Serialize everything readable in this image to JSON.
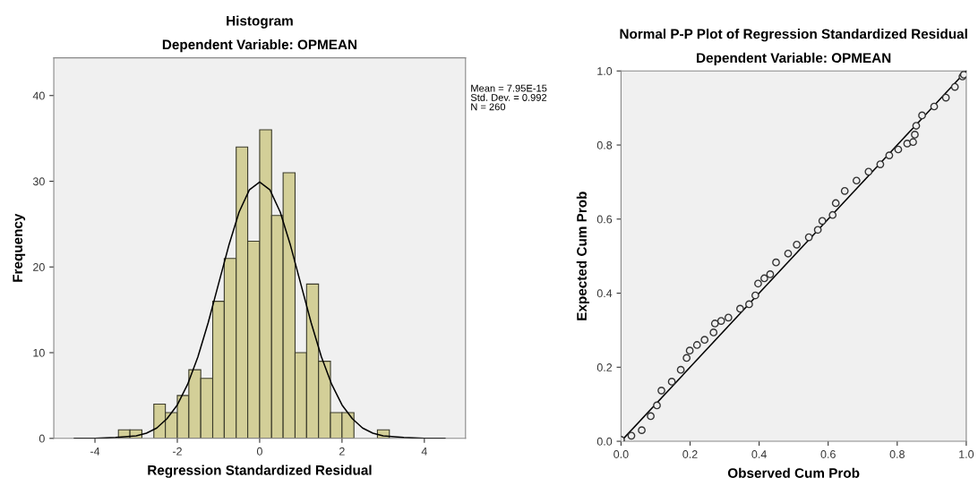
{
  "chart_data": [
    {
      "type": "histogram",
      "title": "Histogram",
      "subtitle": "Dependent Variable: OPMEAN",
      "xlabel": "Regression Standardized Residual",
      "ylabel": "Frequency",
      "xlim": [
        -5,
        5
      ],
      "ylim": [
        0,
        44.4
      ],
      "xticks": [
        -4,
        -2,
        0,
        2,
        4
      ],
      "yticks": [
        0,
        10,
        20,
        30,
        40
      ],
      "series": [
        {
          "color": "#d3cf98",
          "bins": [
            -3.43,
            -3.15,
            -2.86,
            -2.57,
            -2.29,
            -2.0,
            -1.72,
            -1.43,
            -1.14,
            -0.86,
            -0.57,
            -0.29,
            0,
            0.29,
            0.57,
            0.86,
            1.14,
            1.43,
            1.72,
            2.0,
            2.29,
            2.57,
            2.86,
            3.15
          ],
          "values": [
            1,
            1,
            0,
            4,
            3,
            5,
            8,
            7,
            16,
            21,
            34,
            23,
            36,
            26,
            31,
            10,
            18,
            9,
            3,
            3,
            0,
            0,
            1
          ]
        },
        {
          "type": "line",
          "color": "#000000",
          "x": [
            -4.5,
            -4,
            -3.5,
            -3,
            -2.75,
            -2.5,
            -2.25,
            -2,
            -1.75,
            -1.5,
            -1.25,
            -1,
            -0.75,
            -0.5,
            -0.25,
            0,
            0.25,
            0.5,
            0.75,
            1,
            1.25,
            1.5,
            1.75,
            2,
            2.25,
            2.5,
            2.75,
            3,
            3.5,
            4,
            4.5
          ],
          "values": [
            0,
            0,
            0.1,
            0.3,
            0.6,
            1.2,
            2.3,
            3.9,
            6.3,
            9.5,
            13.5,
            18.0,
            22.5,
            26.4,
            29.0,
            29.9,
            29.0,
            26.4,
            22.5,
            18.0,
            13.5,
            9.5,
            6.3,
            3.9,
            2.3,
            1.2,
            0.6,
            0.3,
            0.1,
            0,
            0
          ]
        }
      ],
      "annotations": [
        "Mean = 7.95E-15",
        "Std. Dev. = 0.992",
        "N = 260"
      ]
    },
    {
      "type": "scatter",
      "title": "Normal P-P Plot of Regression Standardized Residual",
      "subtitle": "Dependent Variable: OPMEAN",
      "xlabel": "Observed Cum Prob",
      "ylabel": "Expected Cum Prob",
      "xlim": [
        0,
        1
      ],
      "ylim": [
        0,
        1
      ],
      "xticks": [
        {
          "value": 0,
          "label": "0.0"
        },
        {
          "value": 0.2,
          "label": "0.2"
        },
        {
          "value": 0.4,
          "label": "0.4"
        },
        {
          "value": 0.6,
          "label": "0.6"
        },
        {
          "value": 0.8,
          "label": "0.8"
        },
        {
          "value": 1,
          "label": "1.0"
        }
      ],
      "yticks": [
        {
          "value": 0,
          "label": "0.0"
        },
        {
          "value": 0.2,
          "label": "0.2"
        },
        {
          "value": 0.4,
          "label": "0.4"
        },
        {
          "value": 0.6,
          "label": "0.6"
        },
        {
          "value": 0.8,
          "label": "0.8"
        },
        {
          "value": 1,
          "label": "1.0"
        }
      ],
      "series": [
        {
          "marker": "circle",
          "color": "#333333",
          "x": [
            0.0,
            0.03,
            0.06,
            0.086,
            0.104,
            0.117,
            0.147,
            0.173,
            0.19,
            0.199,
            0.22,
            0.242,
            0.268,
            0.272,
            0.29,
            0.311,
            0.345,
            0.371,
            0.389,
            0.397,
            0.415,
            0.432,
            0.449,
            0.484,
            0.509,
            0.544,
            0.57,
            0.583,
            0.613,
            0.622,
            0.648,
            0.682,
            0.717,
            0.751,
            0.777,
            0.803,
            0.829,
            0.846,
            0.851,
            0.855,
            0.872,
            0.907,
            0.941,
            0.967,
            0.989,
            0.993
          ],
          "values": [
            0.004,
            0.015,
            0.03,
            0.068,
            0.097,
            0.137,
            0.161,
            0.193,
            0.225,
            0.245,
            0.26,
            0.274,
            0.294,
            0.318,
            0.325,
            0.334,
            0.358,
            0.37,
            0.394,
            0.426,
            0.44,
            0.451,
            0.483,
            0.507,
            0.531,
            0.551,
            0.571,
            0.595,
            0.611,
            0.643,
            0.676,
            0.704,
            0.728,
            0.748,
            0.772,
            0.788,
            0.804,
            0.808,
            0.828,
            0.852,
            0.88,
            0.904,
            0.928,
            0.957,
            0.985,
            0.99
          ]
        },
        {
          "type": "line",
          "color": "#000000",
          "x": [
            0,
            1
          ],
          "values": [
            0,
            1
          ]
        }
      ]
    }
  ]
}
